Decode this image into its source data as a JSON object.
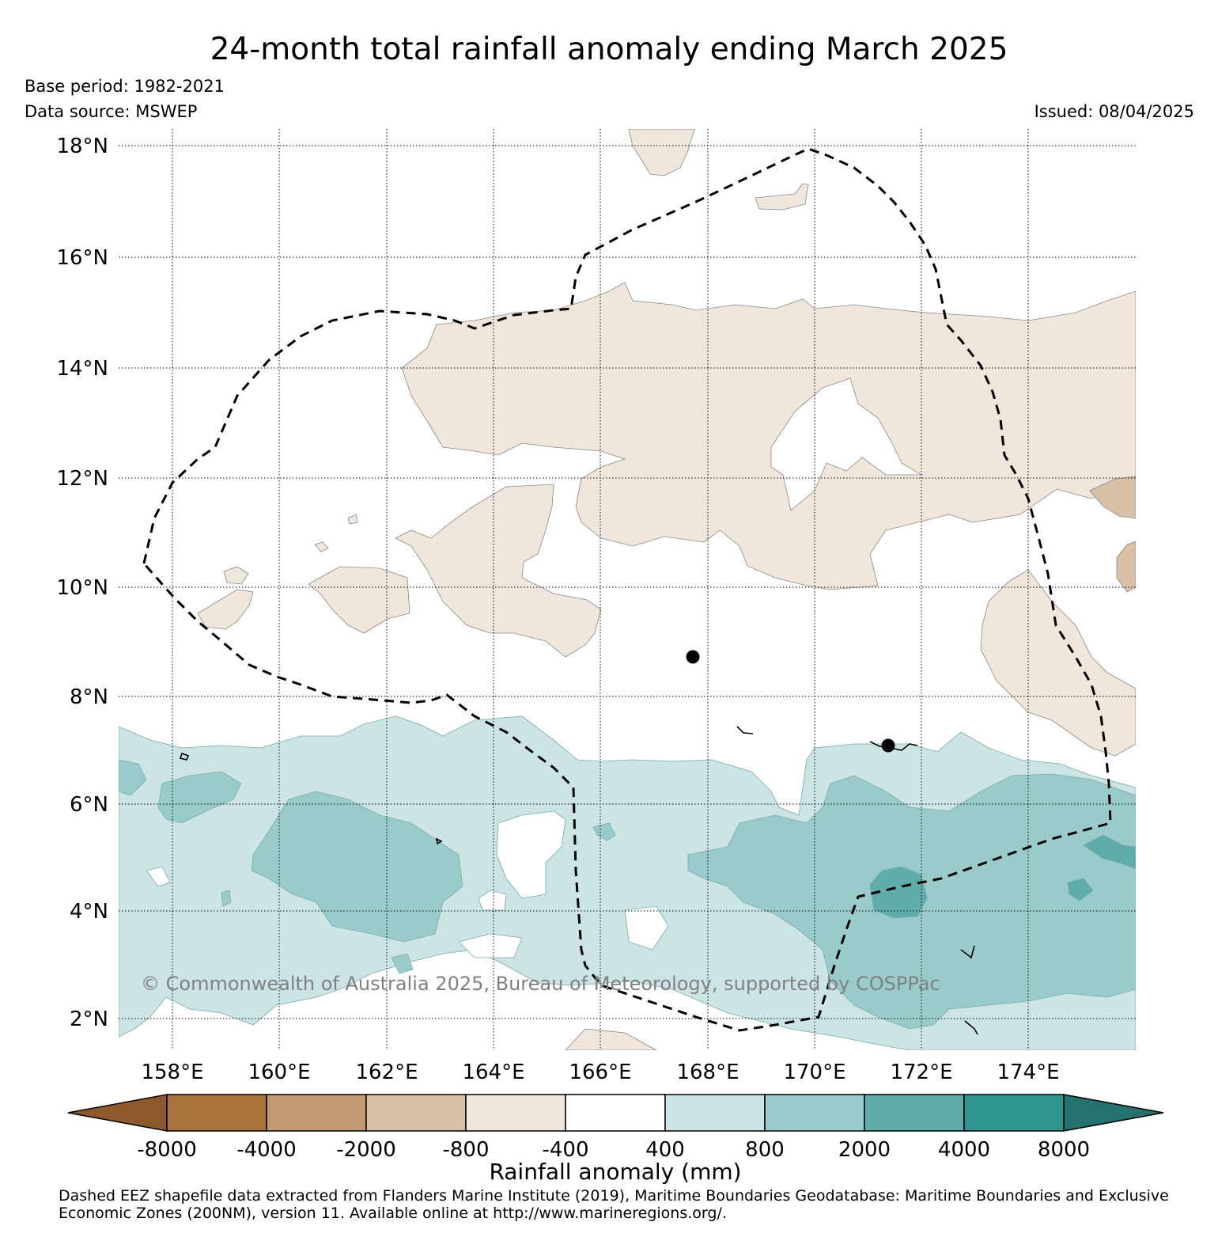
{
  "title": "24-month total rainfall anomaly ending March 2025",
  "base_period": "Base period: 1982-2021",
  "data_source": "Data source: MSWEP",
  "issued": "Issued: 08/04/2025",
  "copyright": "© Commonwealth of Australia 2025, Bureau of Meteorology, supported by COSPPac",
  "latitude_labels": [
    "18°N",
    "16°N",
    "14°N",
    "12°N",
    "10°N",
    "8°N",
    "6°N",
    "4°N",
    "2°N"
  ],
  "longitude_labels": [
    "158°E",
    "160°E",
    "162°E",
    "164°E",
    "166°E",
    "168°E",
    "170°E",
    "172°E",
    "174°E"
  ],
  "colorbar": {
    "label": "Rainfall anomaly (mm)",
    "tick_labels": [
      "-8000",
      "-4000",
      "-2000",
      "-800",
      "-400",
      "400",
      "800",
      "2000",
      "4000",
      "8000"
    ],
    "colors": [
      "#8e5a2c",
      "#a9733e",
      "#c19a72",
      "#d9c1a8",
      "#f0e6dc",
      "#ffffff",
      "#cce5e4",
      "#9acbcb",
      "#5fadab",
      "#30958f",
      "#25716d"
    ]
  },
  "footer": {
    "line1": "Dashed EEZ shapefile data extracted from Flanders Marine Institute (2019), Maritime Boundaries Geodatabase: Maritime Boundaries and Exclusive",
    "line2": "Economic Zones (200NM), version 11. Available online at http://www.marineregions.org/."
  }
}
